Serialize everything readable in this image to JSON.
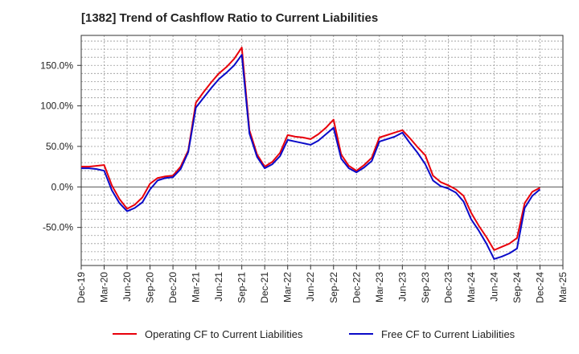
{
  "chart_data": {
    "type": "line",
    "title": "[1382]  Trend of Cashflow Ratio to Current Liabilities",
    "xlabel": "",
    "ylabel": "",
    "x_tick_labels": [
      "Dec-19",
      "Mar-20",
      "Jun-20",
      "Sep-20",
      "Dec-20",
      "Mar-21",
      "Jun-21",
      "Sep-21",
      "Dec-21",
      "Mar-22",
      "Jun-22",
      "Sep-22",
      "Dec-22",
      "Mar-23",
      "Jun-23",
      "Sep-23",
      "Dec-23",
      "Mar-24",
      "Jun-24",
      "Sep-24",
      "Dec-24",
      "Mar-25"
    ],
    "y_tick_labels": [
      "150.0%",
      "100.0%",
      "50.0%",
      "0.0%",
      "-50.0%"
    ],
    "y_ticks": [
      150,
      100,
      50,
      0,
      -50
    ],
    "ylim": [
      -97,
      187
    ],
    "grid": true,
    "legend_position": "bottom",
    "x": [
      "Dec-19",
      "Jan-20",
      "Feb-20",
      "Mar-20",
      "Apr-20",
      "May-20",
      "Jun-20",
      "Jul-20",
      "Aug-20",
      "Sep-20",
      "Oct-20",
      "Nov-20",
      "Dec-20",
      "Jan-21",
      "Feb-21",
      "Mar-21",
      "Apr-21",
      "May-21",
      "Jun-21",
      "Jul-21",
      "Aug-21",
      "Sep-21",
      "Oct-21",
      "Nov-21",
      "Dec-21",
      "Jan-22",
      "Feb-22",
      "Mar-22",
      "Apr-22",
      "May-22",
      "Jun-22",
      "Jul-22",
      "Aug-22",
      "Sep-22",
      "Oct-22",
      "Nov-22",
      "Dec-22",
      "Jan-23",
      "Feb-23",
      "Mar-23",
      "Apr-23",
      "May-23",
      "Jun-23",
      "Jul-23",
      "Aug-23",
      "Sep-23",
      "Oct-23",
      "Nov-23",
      "Dec-23",
      "Jan-24",
      "Feb-24",
      "Mar-24",
      "Apr-24",
      "May-24",
      "Jun-24",
      "Jul-24",
      "Aug-24",
      "Sep-24",
      "Oct-24",
      "Nov-24",
      "Dec-24"
    ],
    "series": [
      {
        "name": "Operating CF to Current Liabilities",
        "color": "#e8000b",
        "values": [
          25,
          25,
          26,
          27,
          2,
          -15,
          -27,
          -22,
          -13,
          4,
          11,
          13,
          14,
          25,
          45,
          104,
          117,
          129,
          140,
          148,
          158,
          172,
          70,
          40,
          25,
          31,
          42,
          64,
          62,
          61,
          59,
          65,
          73,
          83,
          40,
          26,
          20,
          27,
          36,
          61,
          64,
          67,
          70,
          60,
          49,
          39,
          14,
          6,
          2,
          -3,
          -11,
          -32,
          -48,
          -62,
          -78,
          -74,
          -70,
          -63,
          -20,
          -6,
          -1
        ]
      },
      {
        "name": "Free CF to Current Liabilities",
        "color": "#0a0ac8",
        "values": [
          23,
          23,
          22,
          20,
          -4,
          -20,
          -30,
          -26,
          -19,
          -3,
          8,
          11,
          12,
          22,
          43,
          98,
          110,
          122,
          133,
          141,
          150,
          163,
          66,
          37,
          23,
          28,
          38,
          58,
          56,
          54,
          52,
          57,
          65,
          73,
          35,
          23,
          18,
          24,
          32,
          56,
          59,
          62,
          67,
          54,
          42,
          28,
          8,
          1,
          -2,
          -7,
          -18,
          -40,
          -54,
          -70,
          -89,
          -86,
          -82,
          -76,
          -26,
          -11,
          -3
        ]
      }
    ]
  }
}
